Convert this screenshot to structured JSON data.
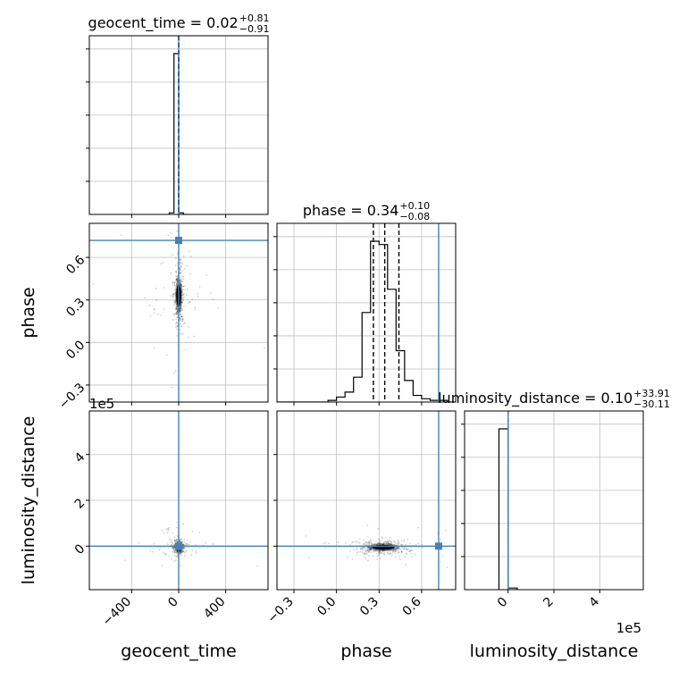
{
  "chart_data": {
    "type": "corner",
    "parameters": [
      "geocent_time",
      "phase",
      "luminosity_distance"
    ],
    "truths": {
      "geocent_time": 0,
      "phase": 0.72,
      "luminosity_distance": 0
    },
    "colors": {
      "truth": "#4682b4",
      "hist": "#000000",
      "grid": "#c0c0c0"
    },
    "titles": [
      {
        "param": "geocent_time",
        "text": "geocent_time = 0.02",
        "sup": "+0.81",
        "sub": "−0.91"
      },
      {
        "param": "phase",
        "text": "phase = 0.34",
        "sup": "+0.10",
        "sub": "−0.08"
      },
      {
        "param": "luminosity_distance",
        "text": "luminosity_distance = 0.10",
        "sup": "+33.91",
        "sub": "−30.11"
      }
    ],
    "axes": {
      "geocent_time": {
        "range": [
          -760,
          760
        ],
        "ticks": [
          -400,
          0,
          400
        ],
        "tick_labels": [
          "−400",
          "0",
          "400"
        ],
        "label": "geocent_time"
      },
      "phase": {
        "range": [
          -0.42,
          0.84
        ],
        "ticks": [
          -0.3,
          0.0,
          0.3,
          0.6
        ],
        "tick_labels": [
          "−0.3",
          "0.0",
          "0.3",
          "0.6"
        ],
        "label": "phase"
      },
      "luminosity_distance": {
        "range": [
          -1.9,
          5.9
        ],
        "ticks": [
          0,
          2,
          4
        ],
        "tick_labels": [
          "0",
          "2",
          "4"
        ],
        "label": "luminosity_distance",
        "offset_text": "1e5"
      }
    },
    "histograms": {
      "geocent_time": {
        "edges": [
          -80,
          -40,
          0,
          40,
          80
        ],
        "counts": [
          0.01,
          1.0,
          0.01,
          0
        ]
      },
      "phase": {
        "edges": [
          -0.42,
          -0.36,
          -0.3,
          -0.24,
          -0.18,
          -0.12,
          -0.06,
          0.0,
          0.06,
          0.12,
          0.18,
          0.24,
          0.3,
          0.36,
          0.42,
          0.48,
          0.54,
          0.6,
          0.66,
          0.72,
          0.78,
          0.84
        ],
        "counts": [
          0,
          0,
          0,
          0,
          0,
          0,
          0.01,
          0.03,
          0.06,
          0.15,
          0.54,
          0.97,
          0.95,
          0.68,
          0.31,
          0.13,
          0.04,
          0.02,
          0.01,
          0.01,
          0
        ]
      },
      "luminosity_distance": {
        "edges": [
          -0.4,
          0,
          0.4
        ],
        "counts": [
          1.0,
          0.01
        ]
      }
    },
    "quantiles": {
      "geocent_time": [
        -0.89,
        0.02,
        0.83
      ],
      "phase": [
        0.26,
        0.34,
        0.44
      ],
      "luminosity_distance": [
        -0.0003,
        1e-06,
        0.0003
      ]
    },
    "posterior_centers": {
      "geocent_time": 0,
      "phase": 0.33,
      "luminosity_distance": -0.05
    }
  }
}
